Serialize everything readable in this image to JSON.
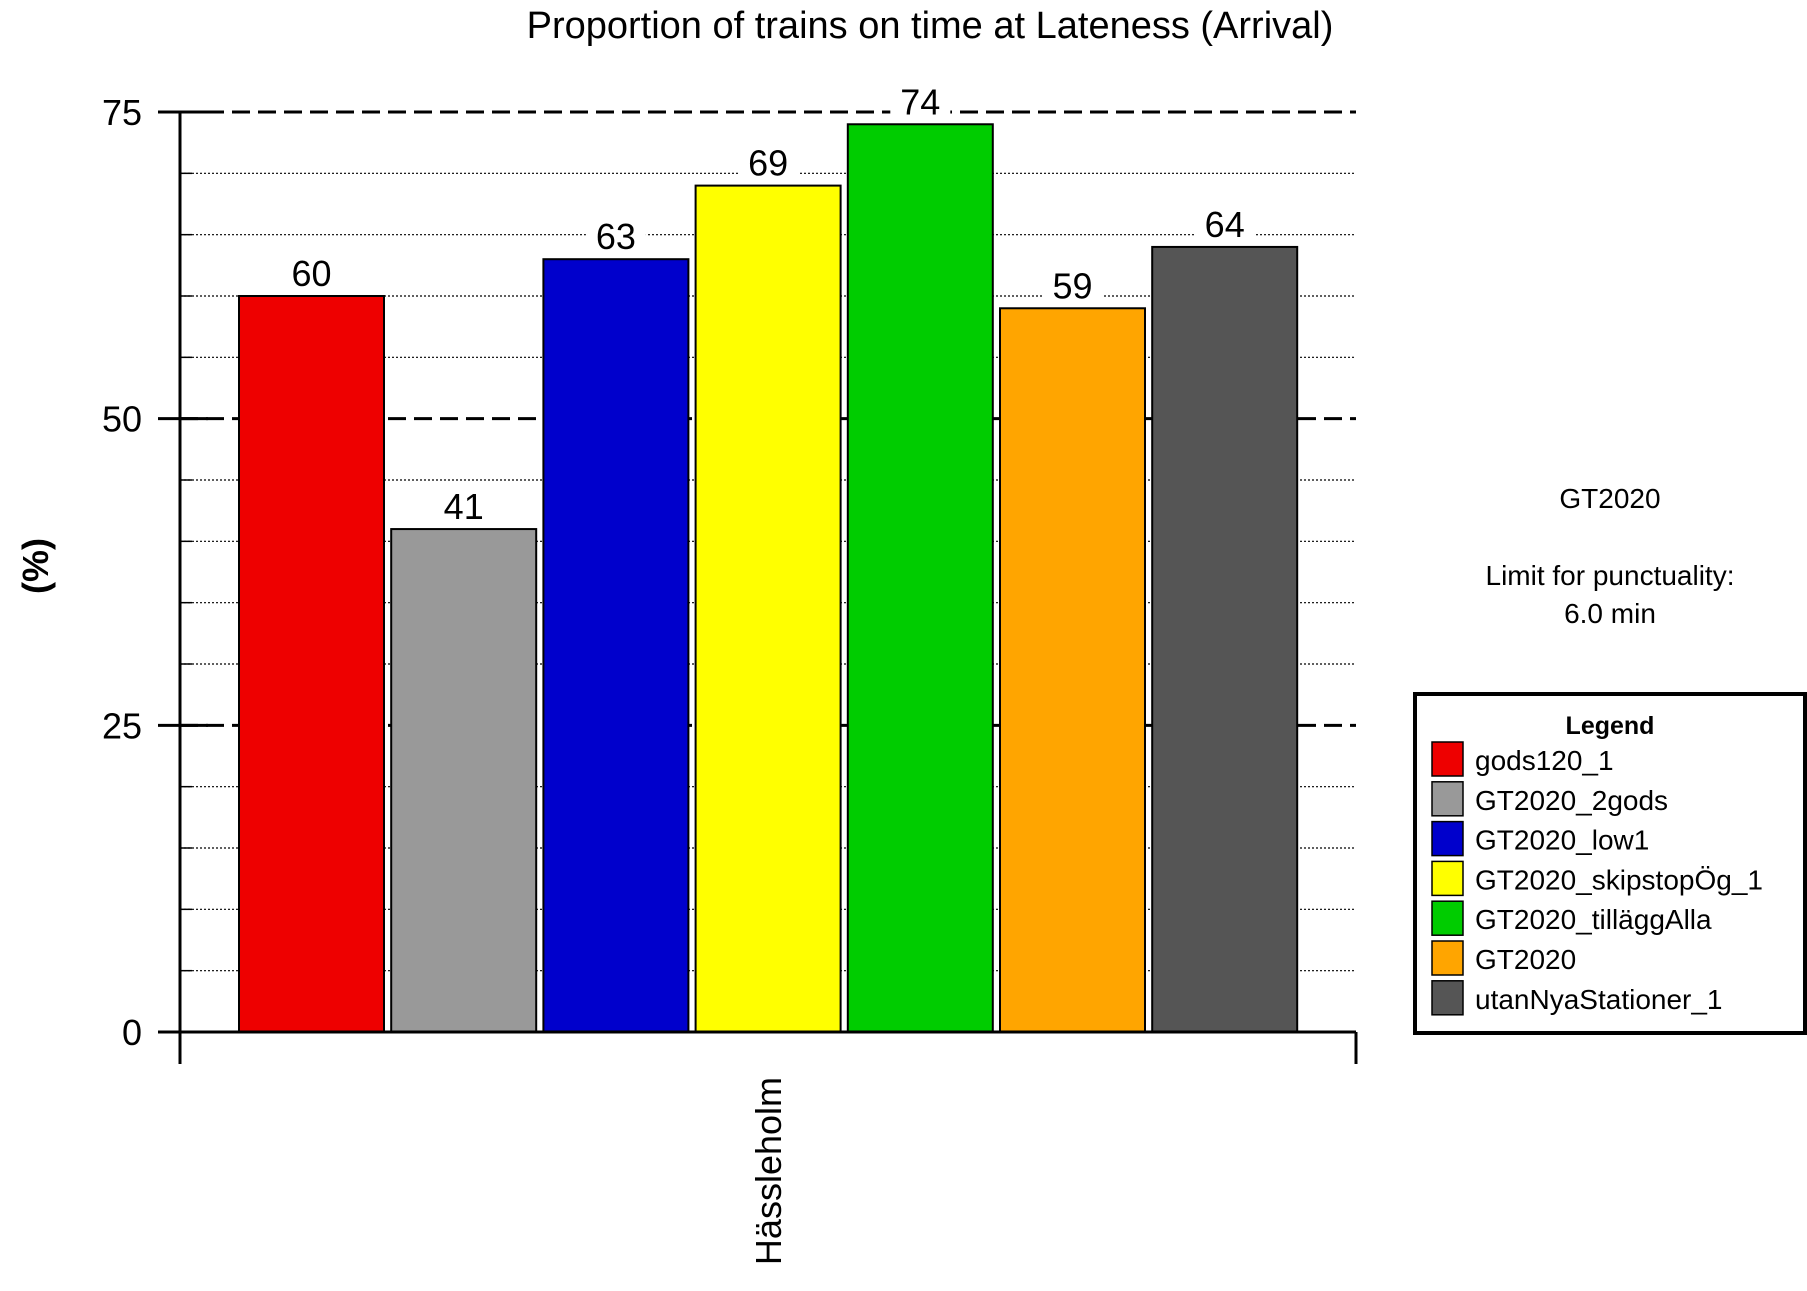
{
  "chart_data": {
    "type": "bar",
    "title": "Proportion of trains on time at Lateness (Arrival)",
    "ylabel": "(%)",
    "xlabel": "",
    "ylim": [
      0,
      75
    ],
    "yticks": [
      0,
      25,
      50,
      75
    ],
    "grid": true,
    "legend_position": "right",
    "categories": [
      "Hässleholm"
    ],
    "series": [
      {
        "name": "gods120_1",
        "color": "#ee0000",
        "values": [
          60
        ]
      },
      {
        "name": "GT2020_2gods",
        "color": "#999999",
        "values": [
          41
        ]
      },
      {
        "name": "GT2020_low1",
        "color": "#0000cc",
        "values": [
          63
        ]
      },
      {
        "name": "GT2020_skipstopÖg_1",
        "color": "#ffff00",
        "values": [
          69
        ]
      },
      {
        "name": "GT2020_tilläggAlla",
        "color": "#00cc00",
        "values": [
          74
        ]
      },
      {
        "name": "GT2020",
        "color": "#ffa500",
        "values": [
          59
        ]
      },
      {
        "name": "utanNyaStationer_1",
        "color": "#555555",
        "values": [
          64
        ]
      }
    ]
  },
  "legend": {
    "title": "Legend"
  },
  "annotation": {
    "scenario": "GT2020",
    "limit_label": "Limit for punctuality:",
    "limit_value": "6.0 min"
  }
}
